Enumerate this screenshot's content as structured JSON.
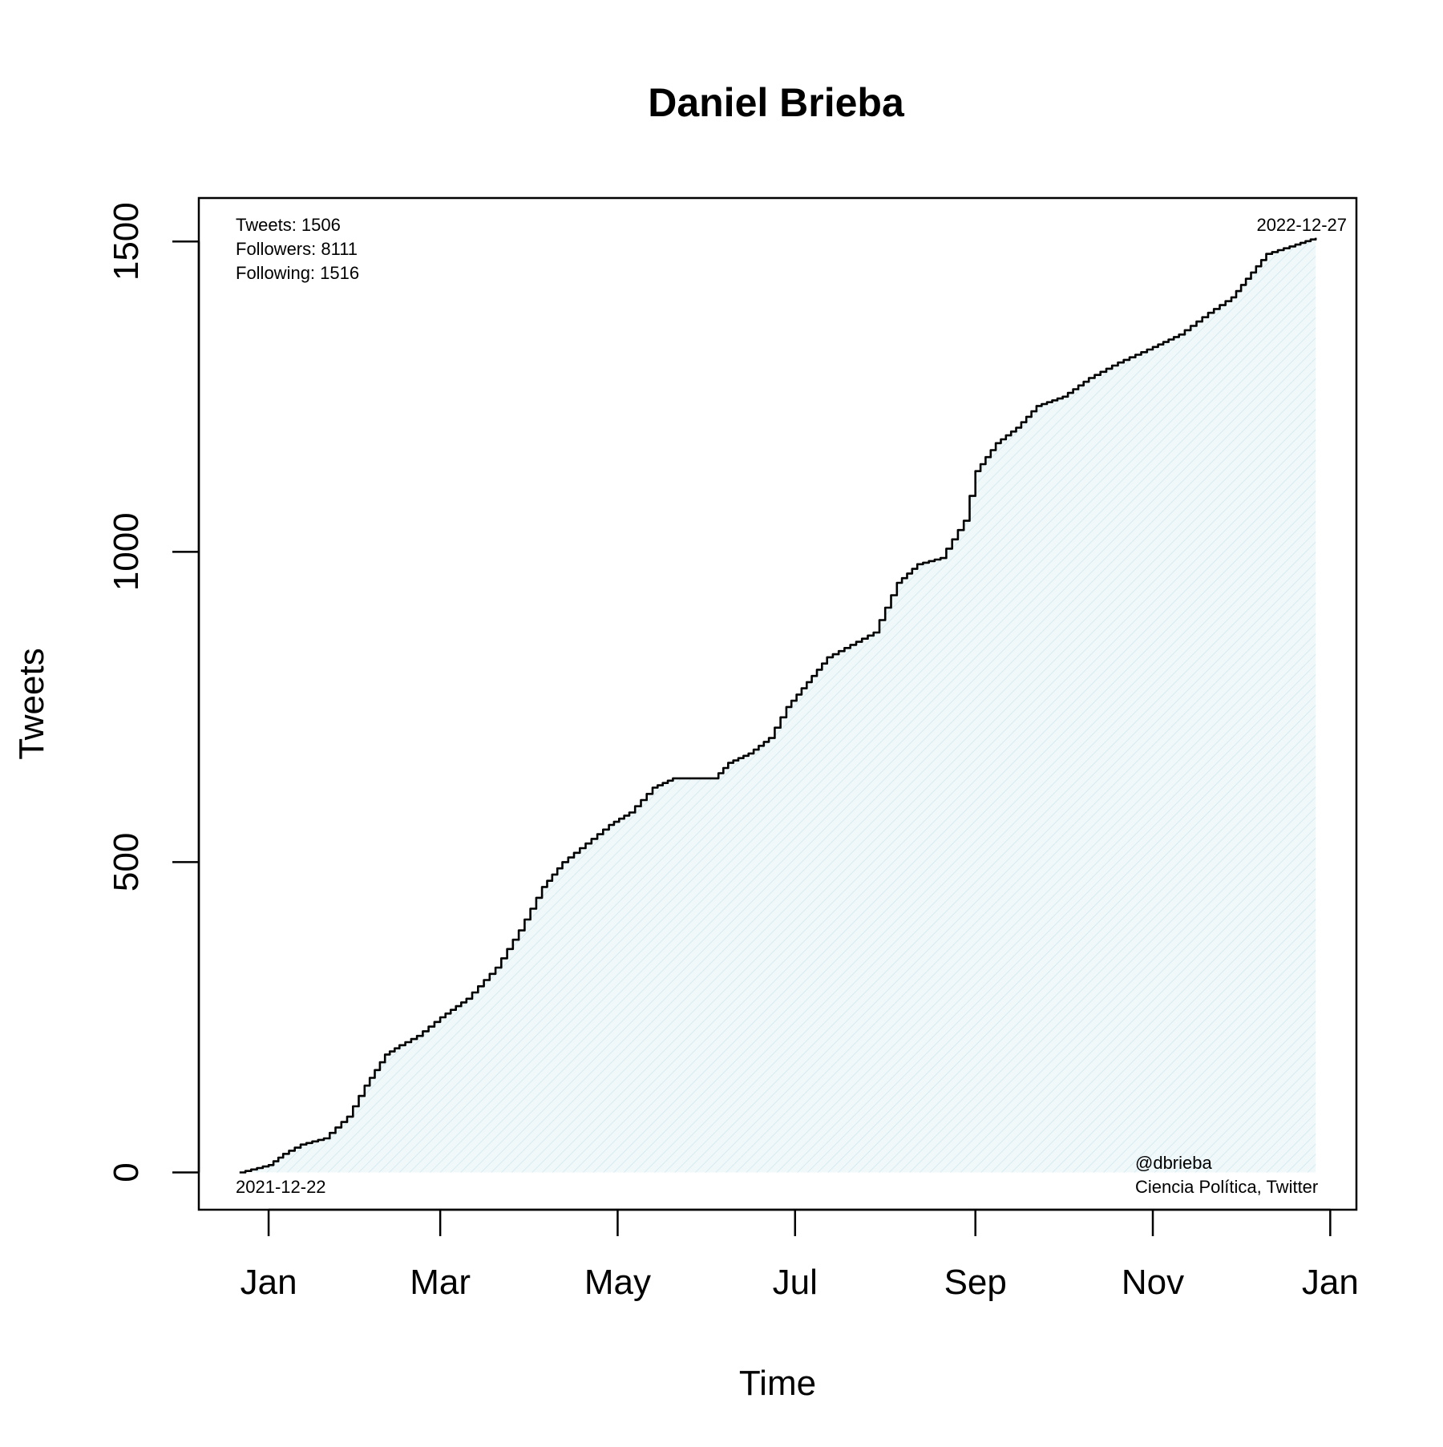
{
  "chart_data": {
    "type": "area",
    "title": "Daniel Brieba",
    "xlabel": "Time",
    "ylabel": "Tweets",
    "x_ticks": [
      "Jan",
      "Mar",
      "May",
      "Jul",
      "Sep",
      "Nov",
      "Jan"
    ],
    "y_ticks": [
      "0",
      "500",
      "1000",
      "1500"
    ],
    "ylim": [
      -60,
      1570
    ],
    "xlim": [
      "2021-12-08",
      "2023-01-10"
    ],
    "grid": false,
    "fill_color": "#e6f3f7",
    "line_color": "#000000",
    "start_label": "2021-12-22",
    "end_label": "2022-12-27",
    "stats": {
      "tweets": "Tweets: 1506",
      "followers": "Followers: 8111",
      "following": "Following: 1516"
    },
    "credit": {
      "handle": "@dbrieba",
      "source": "Ciencia Política, Twitter"
    },
    "x": [
      "2021-12-22",
      "2022-01-01",
      "2022-01-06",
      "2022-01-12",
      "2022-01-20",
      "2022-01-28",
      "2022-02-03",
      "2022-02-10",
      "2022-02-15",
      "2022-02-21",
      "2022-03-01",
      "2022-03-10",
      "2022-03-20",
      "2022-03-28",
      "2022-04-05",
      "2022-04-12",
      "2022-04-20",
      "2022-04-28",
      "2022-05-05",
      "2022-05-13",
      "2022-05-20",
      "2022-06-03",
      "2022-06-08",
      "2022-06-15",
      "2022-06-22",
      "2022-06-28",
      "2022-07-05",
      "2022-07-12",
      "2022-07-20",
      "2022-07-28",
      "2022-08-05",
      "2022-08-12",
      "2022-08-20",
      "2022-08-28",
      "2022-09-01",
      "2022-09-08",
      "2022-09-15",
      "2022-09-22",
      "2022-10-01",
      "2022-10-10",
      "2022-10-20",
      "2022-11-01",
      "2022-11-10",
      "2022-11-20",
      "2022-11-28",
      "2022-12-03",
      "2022-12-10",
      "2022-12-20",
      "2022-12-27"
    ],
    "y": [
      0,
      12,
      30,
      45,
      55,
      90,
      140,
      190,
      205,
      220,
      250,
      280,
      330,
      390,
      460,
      500,
      530,
      560,
      580,
      620,
      635,
      635,
      660,
      675,
      700,
      750,
      790,
      830,
      850,
      870,
      950,
      980,
      990,
      1050,
      1130,
      1175,
      1200,
      1235,
      1250,
      1280,
      1305,
      1330,
      1350,
      1385,
      1410,
      1440,
      1480,
      1495,
      1506
    ]
  }
}
